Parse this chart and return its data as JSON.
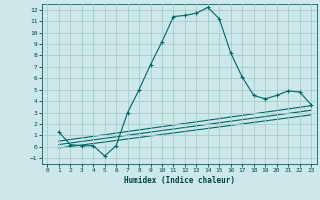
{
  "xlabel": "Humidex (Indice chaleur)",
  "ylabel": "",
  "background_color": "#cce8e8",
  "grid_color": "#aacccc",
  "line_color": "#006666",
  "xlim": [
    -0.5,
    23.5
  ],
  "ylim": [
    -1.5,
    12.5
  ],
  "xticks": [
    0,
    1,
    2,
    3,
    4,
    5,
    6,
    7,
    8,
    9,
    10,
    11,
    12,
    13,
    14,
    15,
    16,
    17,
    18,
    19,
    20,
    21,
    22,
    23
  ],
  "yticks": [
    -1,
    0,
    1,
    2,
    3,
    4,
    5,
    6,
    7,
    8,
    9,
    10,
    11,
    12
  ],
  "series1_x": [
    1,
    2,
    3,
    4,
    5,
    6,
    7,
    8,
    9,
    10,
    11,
    12,
    13,
    14,
    15,
    16,
    17,
    18,
    19,
    20,
    21,
    22,
    23
  ],
  "series1_y": [
    1.3,
    0.2,
    0.1,
    0.1,
    -0.8,
    0.1,
    3.0,
    5.0,
    7.2,
    9.2,
    11.4,
    11.5,
    11.7,
    12.2,
    11.2,
    8.2,
    6.1,
    4.5,
    4.2,
    4.5,
    4.9,
    4.8,
    3.7
  ],
  "series2_x": [
    1,
    23
  ],
  "series2_y": [
    0.5,
    3.6
  ],
  "series3_x": [
    1,
    23
  ],
  "series3_y": [
    0.2,
    3.2
  ],
  "series4_x": [
    1,
    23
  ],
  "series4_y": [
    -0.1,
    2.8
  ]
}
